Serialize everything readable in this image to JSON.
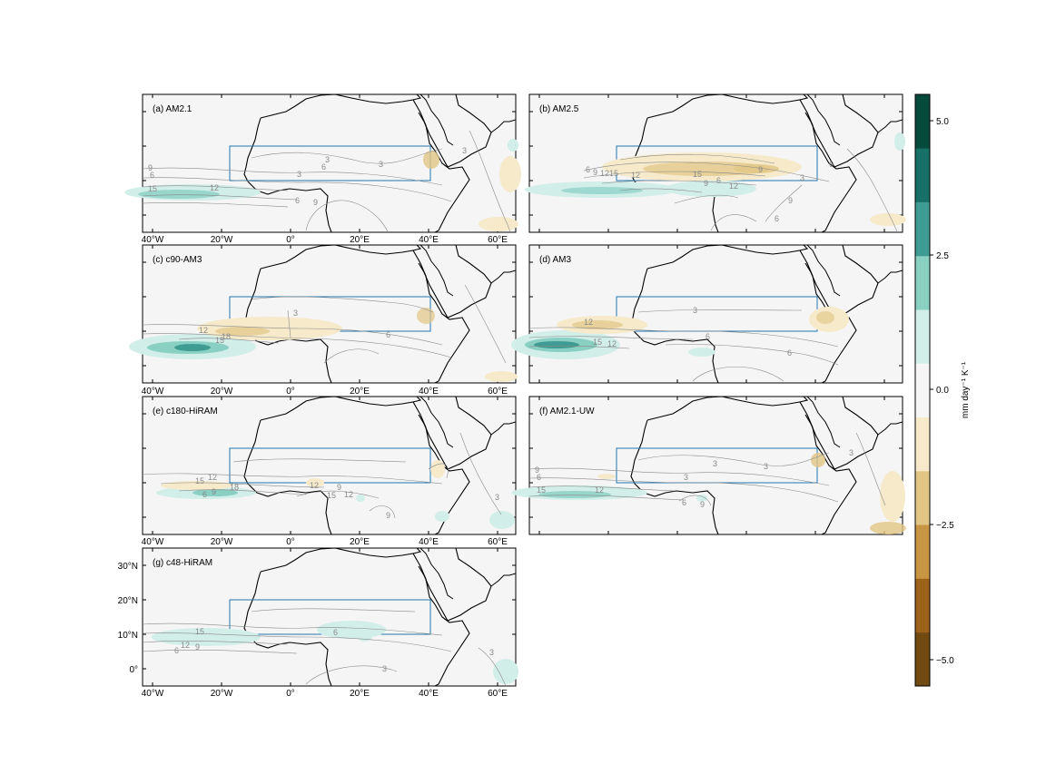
{
  "figure": {
    "panels": [
      {
        "id": "a",
        "label": "(a) AM2.1"
      },
      {
        "id": "b",
        "label": "(b) AM2.5"
      },
      {
        "id": "c",
        "label": "(c) c90-AM3"
      },
      {
        "id": "d",
        "label": "(d) AM3"
      },
      {
        "id": "e",
        "label": "(e) c180-HiRAM"
      },
      {
        "id": "f",
        "label": "(f) AM2.1-UW"
      },
      {
        "id": "g",
        "label": "(g) c48-HiRAM"
      }
    ],
    "lon_ticks": [
      "40°W",
      "20°W",
      "0°",
      "20°E",
      "40°E",
      "60°E"
    ],
    "lat_ticks": [
      "30°N",
      "20°N",
      "10°N",
      "0°"
    ],
    "map_extent": {
      "lon": [
        -43,
        65
      ],
      "lat": [
        -5,
        35
      ]
    },
    "region_box": {
      "lon": [
        -18,
        40
      ],
      "lat": [
        10,
        20
      ]
    },
    "colorbar": {
      "label": "mm day⁻¹ K⁻¹",
      "tick_labels": [
        "5.0",
        "2.5",
        "0.0",
        "−2.5",
        "−5.0"
      ],
      "range": [
        -5.5,
        5.5
      ],
      "colors": [
        "#704a10",
        "#9b6219",
        "#c79544",
        "#e1c584",
        "#f6eacb",
        "#f5f5f5",
        "#d2eee9",
        "#89cfc2",
        "#3f9c92",
        "#177167",
        "#064a3e"
      ]
    },
    "contour_labels": {
      "a": [
        "9",
        "6",
        "15",
        "12",
        "3",
        "3",
        "3",
        "6",
        "9",
        "6",
        "3"
      ],
      "b": [
        "6",
        "9",
        "12",
        "15",
        "12",
        "15",
        "9",
        "6",
        "12",
        "9",
        "3",
        "6",
        "9",
        "6"
      ],
      "c": [
        "12",
        "15",
        "18",
        "3",
        "6"
      ],
      "d": [
        "12",
        "15",
        "12",
        "3",
        "6",
        "6"
      ],
      "e": [
        "15",
        "12",
        "18",
        "6",
        "9",
        "12",
        "9",
        "12",
        "15",
        "9",
        "3"
      ],
      "f": [
        "9",
        "6",
        "15",
        "12",
        "3",
        "3",
        "3",
        "6",
        "9",
        "3"
      ],
      "g": [
        "15",
        "12",
        "9",
        "6",
        "6",
        "3",
        "3"
      ]
    }
  }
}
